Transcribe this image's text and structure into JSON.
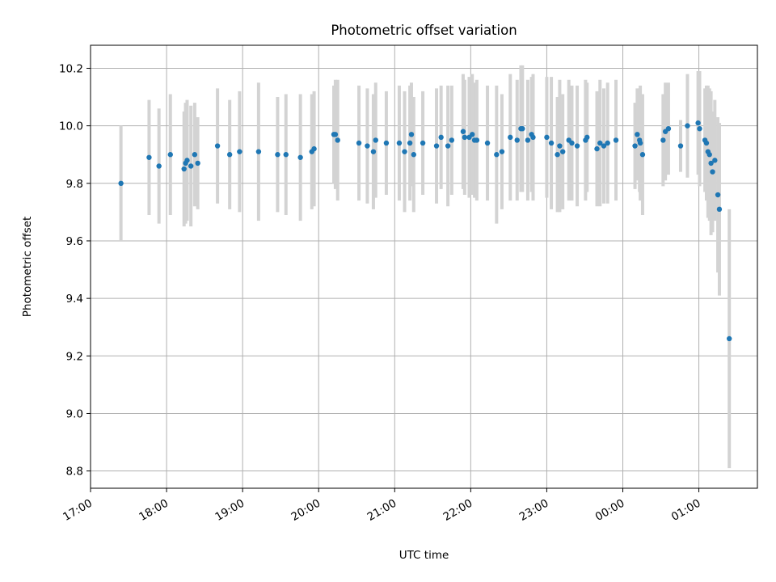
{
  "chart_data": {
    "type": "scatter",
    "title": "Photometric offset variation",
    "xlabel": "UTC time",
    "ylabel": "Photometric offset",
    "x_unit": "hour",
    "x_tick_positions": [
      17,
      18,
      19,
      20,
      21,
      22,
      23,
      24,
      25
    ],
    "x_ticks": [
      "17:00",
      "18:00",
      "19:00",
      "20:00",
      "21:00",
      "22:00",
      "23:00",
      "00:00",
      "01:00"
    ],
    "xlim": [
      17.0,
      25.77
    ],
    "ylim": [
      8.74,
      10.28
    ],
    "y_ticks": [
      "8.8",
      "9.0",
      "9.2",
      "9.4",
      "9.6",
      "9.8",
      "10.0",
      "10.2"
    ],
    "grid": true,
    "point_color": "#1f77b4",
    "errorbar_color": "#d3d3d3",
    "series": [
      {
        "x": [
          17.4,
          17.77,
          17.9,
          18.05,
          18.23,
          18.25,
          18.27,
          18.32,
          18.37,
          18.41,
          18.67,
          18.83,
          18.96,
          19.21,
          19.46,
          19.57,
          19.76,
          19.91,
          19.94,
          20.2,
          20.22,
          20.25,
          20.53,
          20.64,
          20.72,
          20.75,
          20.89,
          21.06,
          21.13,
          21.2,
          21.22,
          21.25,
          21.37,
          21.55,
          21.61,
          21.7,
          21.75,
          21.9,
          21.92,
          21.98,
          22.02,
          22.05,
          22.08,
          22.22,
          22.34,
          22.41,
          22.52,
          22.61,
          22.66,
          22.68,
          22.75,
          22.8,
          22.82,
          23.0,
          23.06,
          23.14,
          23.17,
          23.21,
          23.29,
          23.33,
          23.4,
          23.51,
          23.53,
          23.66,
          23.7,
          23.75,
          23.8,
          23.91,
          24.16,
          24.19,
          24.22,
          24.23,
          24.26,
          24.53,
          24.56,
          24.6,
          24.76,
          24.85,
          24.99,
          25.01,
          25.08,
          25.1,
          25.12,
          25.14,
          25.16,
          25.18,
          25.21,
          25.25,
          25.27,
          25.4
        ],
        "y": [
          9.8,
          9.89,
          9.86,
          9.9,
          9.85,
          9.87,
          9.88,
          9.86,
          9.9,
          9.87,
          9.93,
          9.9,
          9.91,
          9.91,
          9.9,
          9.9,
          9.89,
          9.91,
          9.92,
          9.97,
          9.97,
          9.95,
          9.94,
          9.93,
          9.91,
          9.95,
          9.94,
          9.94,
          9.91,
          9.94,
          9.97,
          9.9,
          9.94,
          9.93,
          9.96,
          9.93,
          9.95,
          9.98,
          9.96,
          9.96,
          9.97,
          9.95,
          9.95,
          9.94,
          9.9,
          9.91,
          9.96,
          9.95,
          9.99,
          9.99,
          9.95,
          9.97,
          9.96,
          9.96,
          9.94,
          9.9,
          9.93,
          9.91,
          9.95,
          9.94,
          9.93,
          9.95,
          9.96,
          9.92,
          9.94,
          9.93,
          9.94,
          9.95,
          9.93,
          9.97,
          9.95,
          9.94,
          9.9,
          9.95,
          9.98,
          9.99,
          9.93,
          10.0,
          10.01,
          9.99,
          9.95,
          9.94,
          9.91,
          9.9,
          9.87,
          9.84,
          9.88,
          9.76,
          9.71,
          9.26
        ],
        "err": [
          0.2,
          0.2,
          0.2,
          0.21,
          0.2,
          0.21,
          0.21,
          0.21,
          0.18,
          0.16,
          0.2,
          0.19,
          0.21,
          0.24,
          0.2,
          0.21,
          0.22,
          0.2,
          0.2,
          0.17,
          0.19,
          0.21,
          0.2,
          0.2,
          0.2,
          0.2,
          0.18,
          0.2,
          0.21,
          0.2,
          0.18,
          0.2,
          0.18,
          0.2,
          0.18,
          0.21,
          0.19,
          0.2,
          0.2,
          0.21,
          0.21,
          0.2,
          0.21,
          0.2,
          0.24,
          0.2,
          0.22,
          0.21,
          0.22,
          0.22,
          0.21,
          0.2,
          0.22,
          0.21,
          0.23,
          0.2,
          0.23,
          0.2,
          0.21,
          0.2,
          0.21,
          0.21,
          0.19,
          0.2,
          0.22,
          0.2,
          0.21,
          0.21,
          0.15,
          0.16,
          0.18,
          0.2,
          0.21,
          0.16,
          0.17,
          0.16,
          0.09,
          0.18,
          0.18,
          0.2,
          0.18,
          0.2,
          0.23,
          0.23,
          0.25,
          0.21,
          0.21,
          0.27,
          0.3,
          0.45
        ]
      }
    ]
  }
}
